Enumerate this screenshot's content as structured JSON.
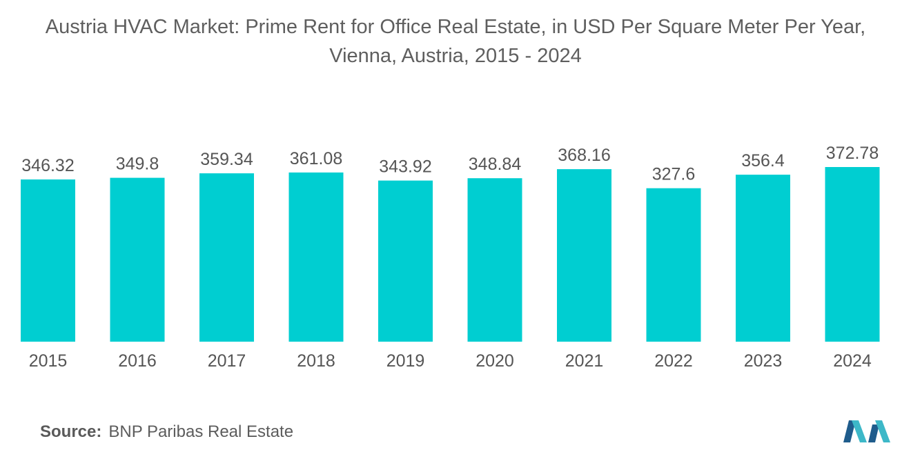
{
  "title": {
    "line1": "Austria HVAC Market: Prime Rent for Office Real Estate, in USD Per Square Meter Per Year,",
    "line2": "Vienna, Austria, 2015 - 2024"
  },
  "source": {
    "label": "Source:",
    "value": "BNP Paribas Real Estate"
  },
  "colors": {
    "bar": "#00CED1",
    "text": "#555555",
    "logo_dark": "#1F5C8C",
    "logo_light": "#3DB8C8"
  },
  "logo": {
    "icon": "mordor-intelligence-logo-icon"
  },
  "chart_data": {
    "type": "bar",
    "categories": [
      "2015",
      "2016",
      "2017",
      "2018",
      "2019",
      "2020",
      "2021",
      "2022",
      "2023",
      "2024"
    ],
    "values": [
      346.32,
      349.8,
      359.34,
      361.08,
      343.92,
      348.84,
      368.16,
      327.6,
      356.4,
      372.78
    ],
    "value_labels": [
      "346.32",
      "349.8",
      "359.34",
      "361.08",
      "343.92",
      "348.84",
      "368.16",
      "327.6",
      "356.4",
      "372.78"
    ],
    "ylim": [
      0,
      372.78
    ],
    "grid": false,
    "legend": "none",
    "xlabel": "",
    "ylabel": ""
  }
}
